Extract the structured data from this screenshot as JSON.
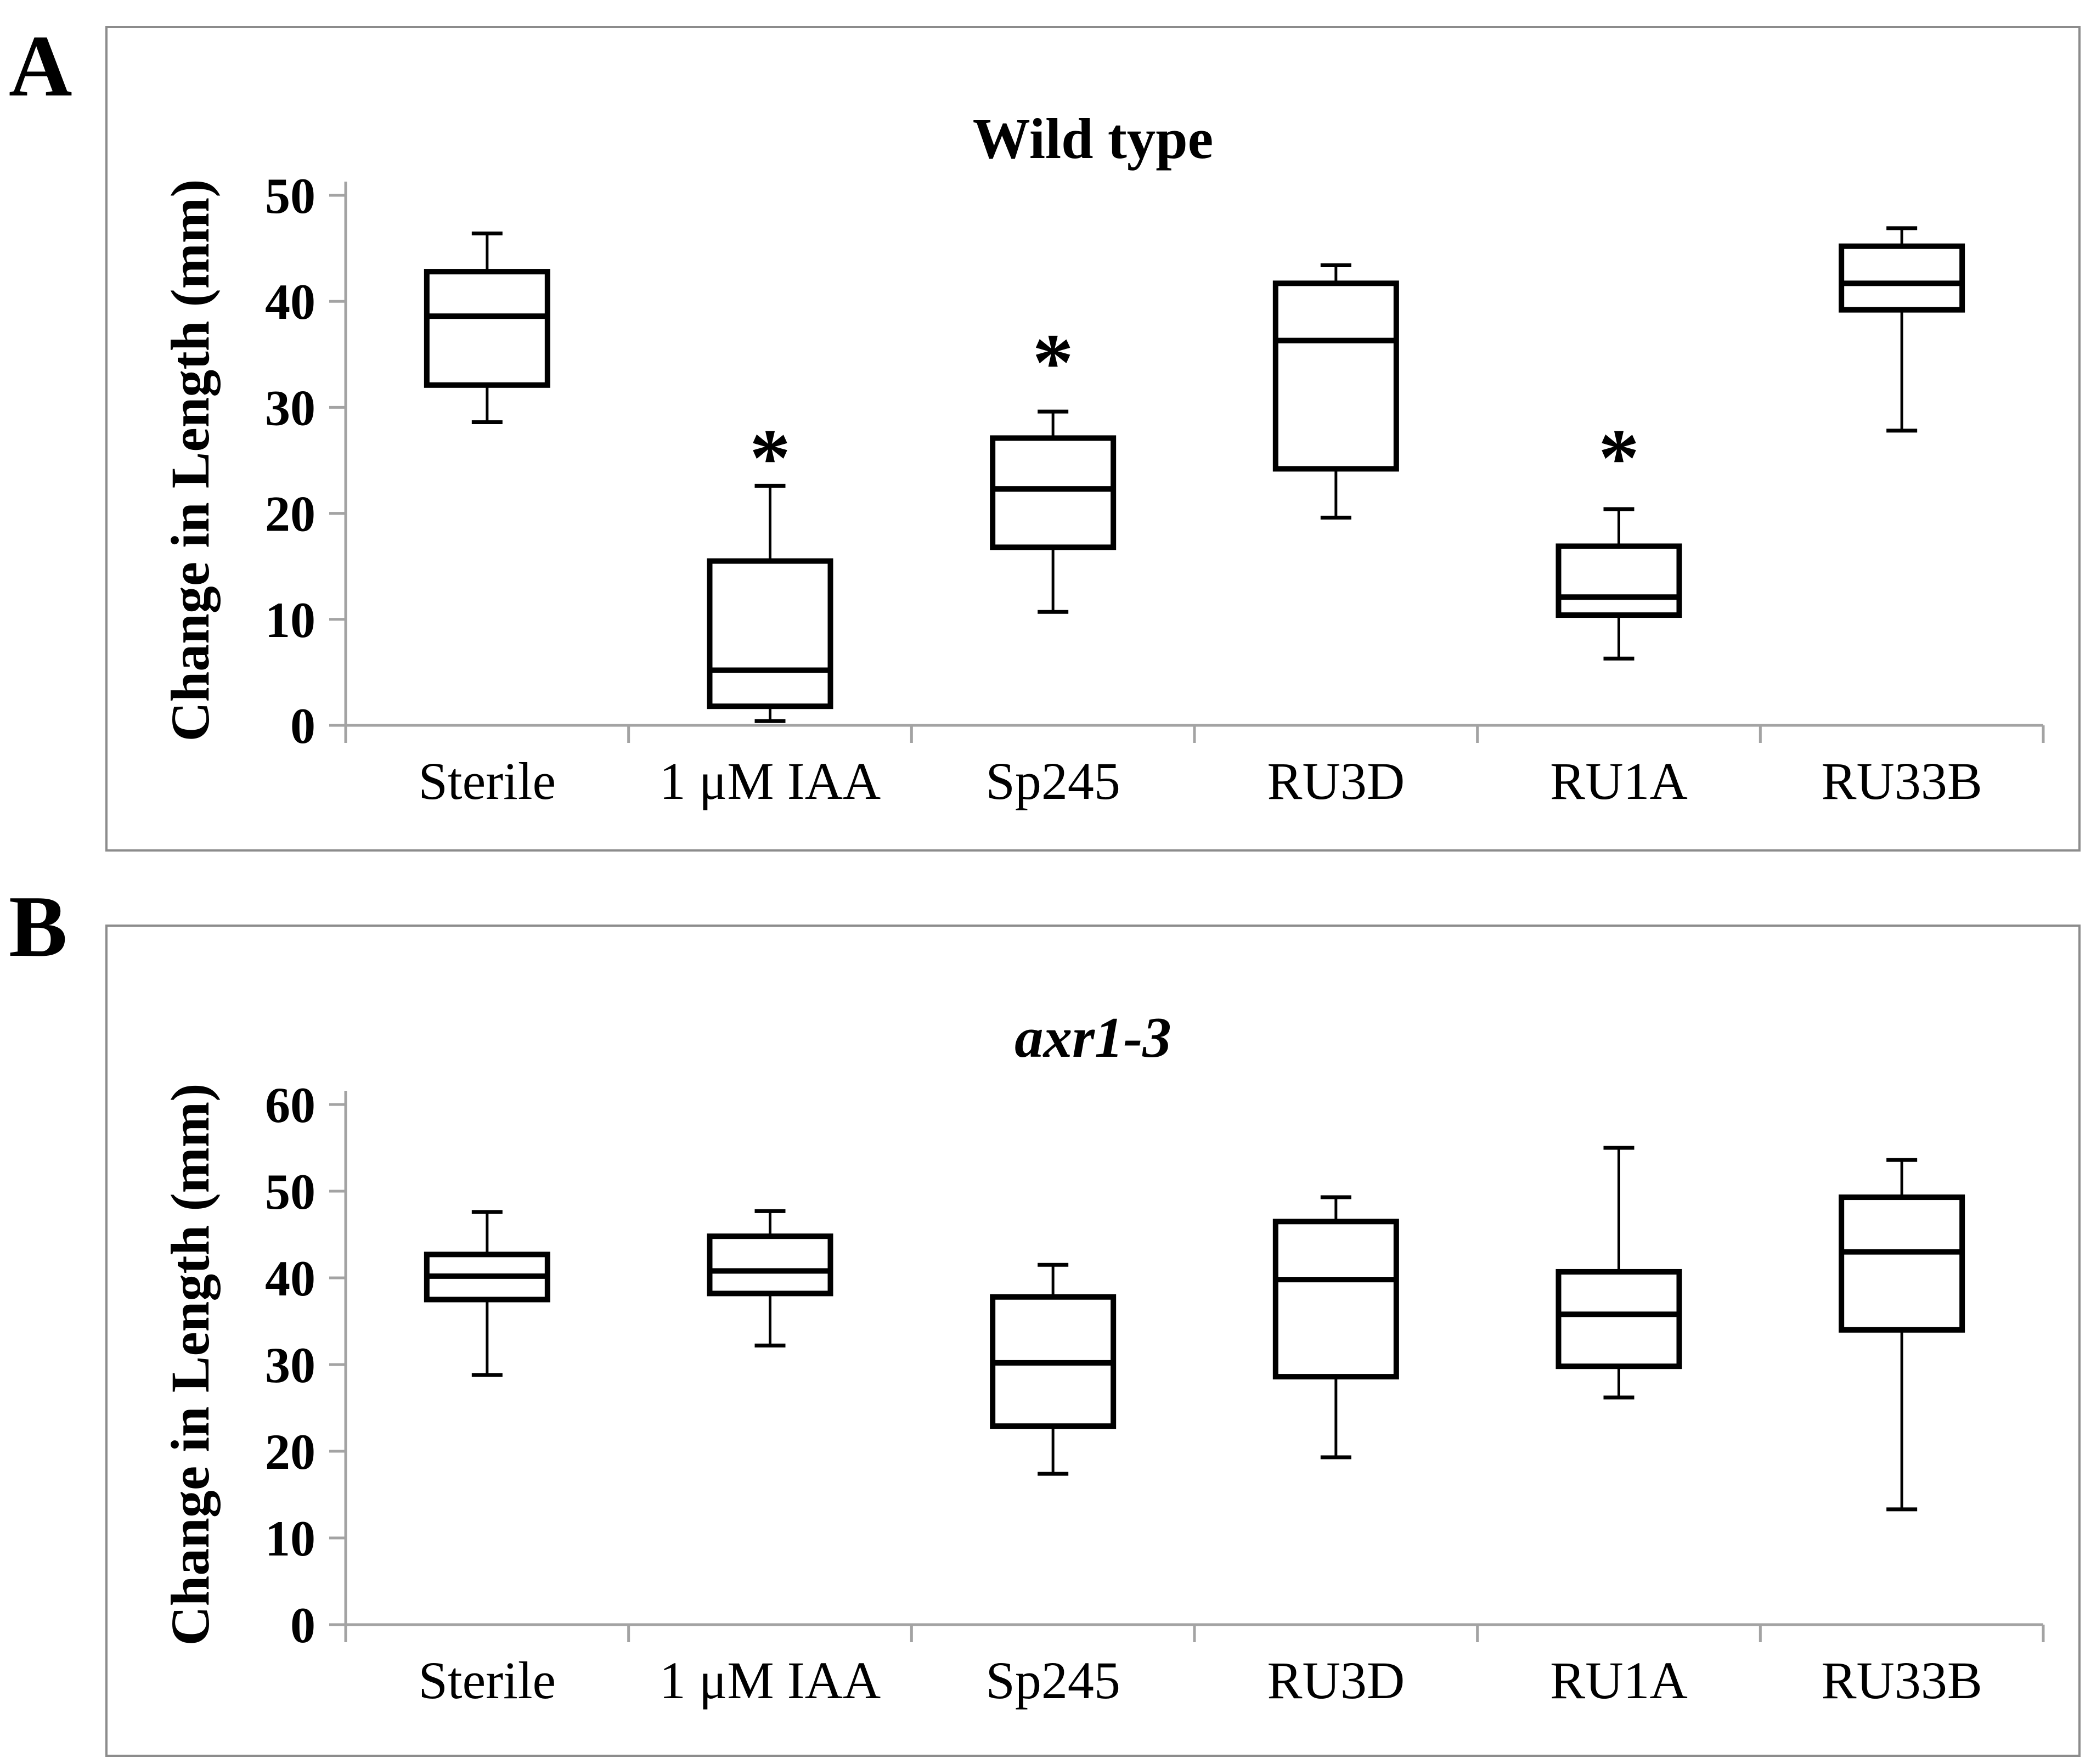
{
  "figure": {
    "panel_letters": [
      "A",
      "B"
    ],
    "significance_marker": "*",
    "background_color": "#ffffff",
    "border_color": "#8c8c8c",
    "axis_color": "#a3a3a3",
    "box_color": "#000000",
    "text_color": "#000000"
  },
  "chart_data": [
    {
      "type": "box",
      "panel": "A",
      "title": "Wild type",
      "title_style": "bold",
      "xlabel": "",
      "ylabel": "Change in Length (mm)",
      "ylim": [
        0,
        50
      ],
      "yticks": [
        0,
        10,
        20,
        30,
        40,
        50
      ],
      "grid": false,
      "legend": false,
      "categories": [
        "Sterile",
        "1 μM IAA",
        "Sp245",
        "RU3D",
        "RU1A",
        "RU33B"
      ],
      "boxes": [
        {
          "category": "Sterile",
          "min": 28.6,
          "q1": 32.1,
          "median": 38.6,
          "q3": 42.8,
          "max": 46.4,
          "significant": false
        },
        {
          "category": "1 μM IAA",
          "min": 0.4,
          "q1": 1.8,
          "median": 5.2,
          "q3": 15.5,
          "max": 22.6,
          "significant": true,
          "asterisk_value": 26
        },
        {
          "category": "Sp245",
          "min": 10.7,
          "q1": 16.8,
          "median": 22.3,
          "q3": 27.1,
          "max": 29.6,
          "significant": true,
          "asterisk_value": 35
        },
        {
          "category": "RU3D",
          "min": 19.6,
          "q1": 24.2,
          "median": 36.3,
          "q3": 41.7,
          "max": 43.4,
          "significant": false
        },
        {
          "category": "RU1A",
          "min": 6.3,
          "q1": 10.4,
          "median": 12.1,
          "q3": 16.9,
          "max": 20.4,
          "significant": true,
          "asterisk_value": 26
        },
        {
          "category": "RU33B",
          "min": 27.8,
          "q1": 39.2,
          "median": 41.7,
          "q3": 45.2,
          "max": 46.9,
          "significant": false
        }
      ]
    },
    {
      "type": "box",
      "panel": "B",
      "title": "axr1-3",
      "title_style": "bold-italic",
      "xlabel": "",
      "ylabel": "Change in Length (mm)",
      "ylim": [
        0,
        60
      ],
      "yticks": [
        0,
        10,
        20,
        30,
        40,
        50,
        60
      ],
      "grid": false,
      "legend": false,
      "categories": [
        "Sterile",
        "1 μM IAA",
        "Sp245",
        "RU3D",
        "RU1A",
        "RU33B"
      ],
      "boxes": [
        {
          "category": "Sterile",
          "min": 28.8,
          "q1": 37.5,
          "median": 40.2,
          "q3": 42.7,
          "max": 47.6,
          "significant": false
        },
        {
          "category": "1 μM IAA",
          "min": 32.2,
          "q1": 38.2,
          "median": 40.8,
          "q3": 44.8,
          "max": 47.7,
          "significant": false
        },
        {
          "category": "Sp245",
          "min": 17.4,
          "q1": 22.9,
          "median": 30.2,
          "q3": 37.8,
          "max": 41.5,
          "significant": false
        },
        {
          "category": "RU3D",
          "min": 19.3,
          "q1": 28.6,
          "median": 39.8,
          "q3": 46.5,
          "max": 49.3,
          "significant": false
        },
        {
          "category": "RU1A",
          "min": 26.2,
          "q1": 29.8,
          "median": 35.8,
          "q3": 40.7,
          "max": 55.0,
          "significant": false
        },
        {
          "category": "RU33B",
          "min": 13.3,
          "q1": 34.0,
          "median": 43.0,
          "q3": 49.3,
          "max": 53.6,
          "significant": false
        }
      ]
    }
  ]
}
